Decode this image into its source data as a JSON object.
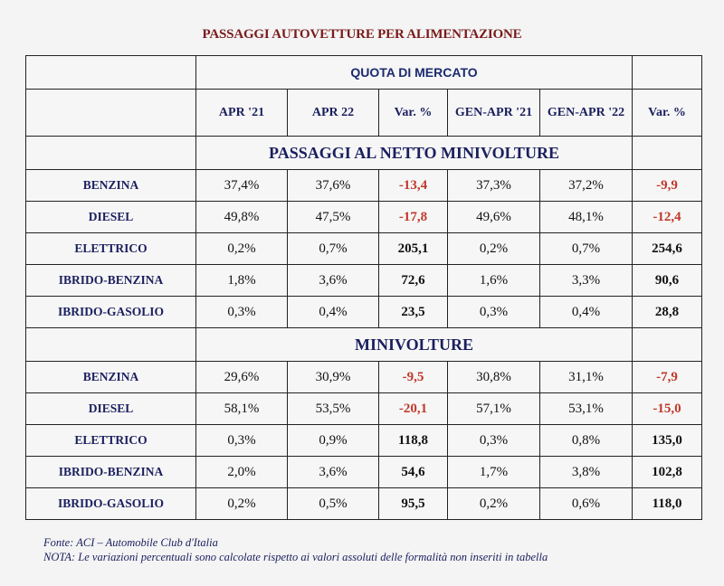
{
  "title": "PASSAGGI AUTOVETTURE PER ALIMENTAZIONE",
  "quota_label": "QUOTA DI MERCATO",
  "columns": [
    "APR '21",
    "APR 22",
    "Var. %",
    "GEN-APR '21",
    "GEN-APR '22",
    "Var. %"
  ],
  "sections": [
    {
      "label": "PASSAGGI AL NETTO MINIVOLTURE",
      "rows": [
        {
          "name": "BENZINA",
          "values": [
            "37,4%",
            "37,6%",
            "-13,4",
            "37,3%",
            "37,2%",
            "-9,9"
          ]
        },
        {
          "name": "DIESEL",
          "values": [
            "49,8%",
            "47,5%",
            "-17,8",
            "49,6%",
            "48,1%",
            "-12,4"
          ]
        },
        {
          "name": "ELETTRICO",
          "values": [
            "0,2%",
            "0,7%",
            "205,1",
            "0,2%",
            "0,7%",
            "254,6"
          ]
        },
        {
          "name": "IBRIDO-BENZINA",
          "values": [
            "1,8%",
            "3,6%",
            "72,6",
            "1,6%",
            "3,3%",
            "90,6"
          ]
        },
        {
          "name": "IBRIDO-GASOLIO",
          "values": [
            "0,3%",
            "0,4%",
            "23,5",
            "0,3%",
            "0,4%",
            "28,8"
          ]
        }
      ]
    },
    {
      "label": "MINIVOLTURE",
      "rows": [
        {
          "name": "BENZINA",
          "values": [
            "29,6%",
            "30,9%",
            "-9,5",
            "30,8%",
            "31,1%",
            "-7,9"
          ]
        },
        {
          "name": "DIESEL",
          "values": [
            "58,1%",
            "53,5%",
            "-20,1",
            "57,1%",
            "53,1%",
            "-15,0"
          ]
        },
        {
          "name": "ELETTRICO",
          "values": [
            "0,3%",
            "0,9%",
            "118,8",
            "0,3%",
            "0,8%",
            "135,0"
          ]
        },
        {
          "name": "IBRIDO-BENZINA",
          "values": [
            "2,0%",
            "3,6%",
            "54,6",
            "1,7%",
            "3,8%",
            "102,8"
          ]
        },
        {
          "name": "IBRIDO-GASOLIO",
          "values": [
            "0,2%",
            "0,5%",
            "95,5",
            "0,2%",
            "0,6%",
            "118,0"
          ]
        }
      ]
    }
  ],
  "source": "Fonte: ACI – Automobile Club d'Italia",
  "note": "NOTA: Le variazioni percentuali sono calcolate rispetto ai valori assoluti delle formalità non inseriti in tabella",
  "colors": {
    "title": "#7a1a1a",
    "labels": "#1a1f5e",
    "negative": "#c0392b"
  }
}
